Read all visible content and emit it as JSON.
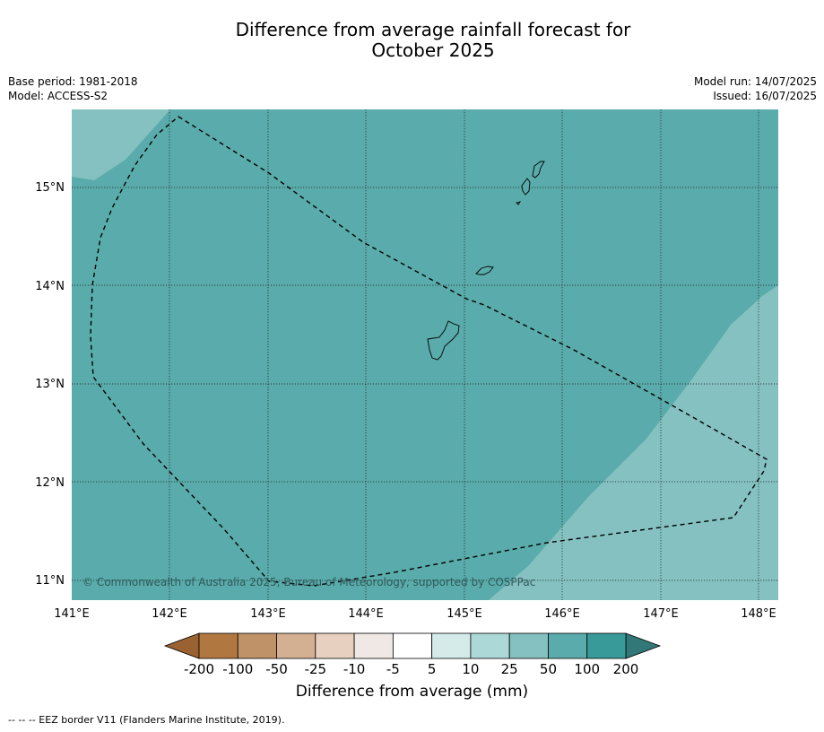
{
  "title_line1": "Difference from average rainfall forecast for",
  "title_line2": "October 2025",
  "meta": {
    "base_period": "Base period: 1981-2018",
    "model": "Model: ACCESS-S2",
    "model_run": "Model run: 14/07/2025",
    "issued": "Issued: 16/07/2025"
  },
  "map": {
    "lon_ticks": [
      "141°E",
      "142°E",
      "143°E",
      "144°E",
      "145°E",
      "146°E",
      "147°E",
      "148°E"
    ],
    "lat_ticks": [
      "15°N",
      "14°N",
      "13°N",
      "12°N",
      "11°N"
    ],
    "copyright": "© Commonwealth of Australia 2025, Bureau of Meteorology, supported by COSPPac",
    "dominant_class": "100 to 200 mm",
    "secondary_class": "50 to 100 mm",
    "colors": {
      "band_50_100": "#84c1c0",
      "band_100_200": "#5aabab"
    }
  },
  "colorbar": {
    "labels": [
      "-200",
      "-100",
      "-50",
      "-25",
      "-10",
      "-5",
      "5",
      "10",
      "25",
      "50",
      "100",
      "200"
    ],
    "colors": [
      "#9a6232",
      "#b07840",
      "#c09268",
      "#d3b092",
      "#e7d0bf",
      "#efe8e4",
      "#ffffff",
      "#d4ebea",
      "#acd8d7",
      "#84c1c0",
      "#5aabab",
      "#389a99",
      "#337878"
    ],
    "title": "Difference from average (mm)"
  },
  "footer": "--  --  -- EEZ border V11 (Flanders Marine Institute, 2019)."
}
